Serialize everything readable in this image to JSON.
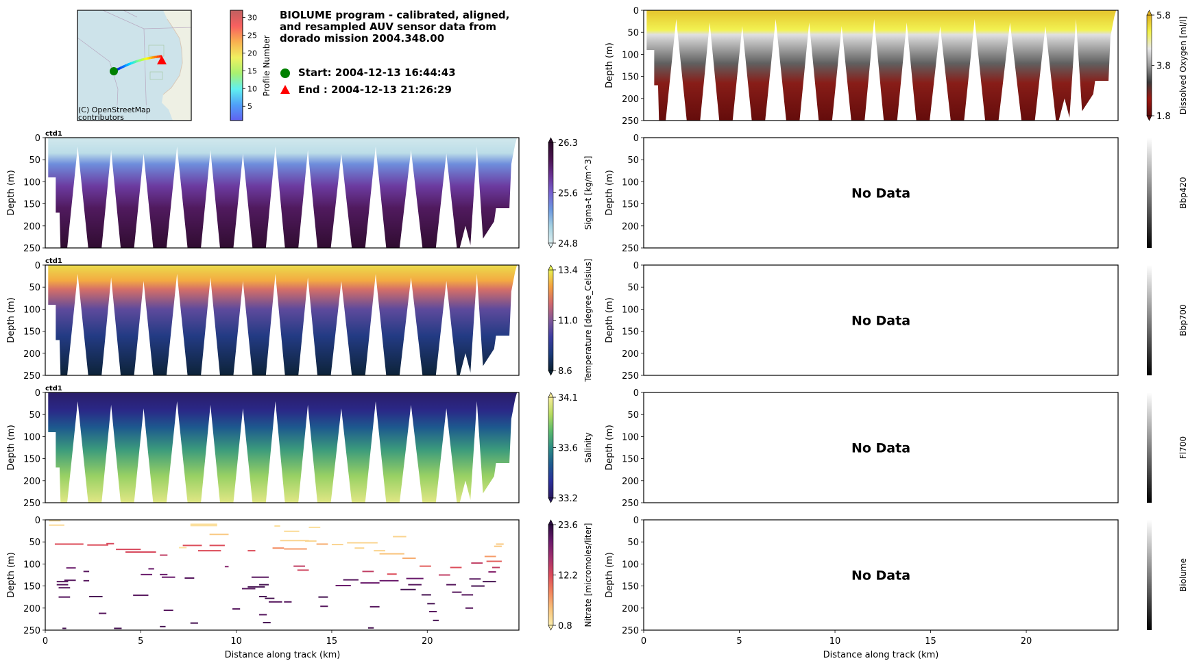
{
  "header": {
    "title_lines": [
      "BIOLUME program - calibrated, aligned,",
      "and resampled AUV sensor data from",
      "dorado mission 2004.348.00"
    ],
    "start_label": "Start: 2004-12-13 16:44:43",
    "end_label": "End  : 2004-12-13 21:26:29",
    "start_marker_color": "#008000",
    "end_marker_color": "#ff0000"
  },
  "map": {
    "credit_lines": [
      "(C) OpenStreetMap",
      "contributors"
    ],
    "water_color": "#cde3ea",
    "track_color_scale": "jet",
    "colorbar": {
      "label": "Profile Number",
      "ticks": [
        5,
        10,
        15,
        20,
        25,
        30
      ],
      "range": [
        1,
        32
      ]
    }
  },
  "chart_data": {
    "type": "heatmap",
    "title": "BIOLUME program - calibrated, aligned, and resampled AUV sensor data from dorado mission 2004.348.00",
    "xlabel": "Distance along track (km)",
    "ylabel": "Depth (m)",
    "xlim": [
      0,
      24.8
    ],
    "ylim": [
      250,
      0
    ],
    "xticks": [
      0,
      5,
      10,
      15,
      20
    ],
    "yticks": [
      0,
      50,
      100,
      150,
      200,
      250
    ],
    "profile_count": 32,
    "yo_bottom_km": [
      0.8,
      2.6,
      4.3,
      6.0,
      7.8,
      9.5,
      11.2,
      12.9,
      14.6,
      16.4,
      18.2,
      20.1,
      21.9,
      23.3,
      24.0
    ],
    "yo_top_km": [
      0.1,
      1.9,
      3.6,
      5.3,
      7.0,
      8.7,
      10.4,
      12.1,
      13.8,
      15.6,
      17.4,
      19.2,
      21.2,
      22.8,
      23.7,
      24.6
    ],
    "panels": [
      {
        "id": "dissolved-oxygen",
        "column": "right",
        "row": 0,
        "tag": "",
        "has_data": true,
        "colorbar_label": "Dissolved Oxygen [ml/l]",
        "vmin": 1.8,
        "vmax": 5.8,
        "cbar_ticks": [
          "5.8",
          "3.8",
          "1.8"
        ],
        "colormap": [
          "#5a0a0a",
          "#9b1610",
          "#3a3a3a",
          "#9a9a9a",
          "#e8e8e8",
          "#f2f24a",
          "#e0b020"
        ],
        "layers": [
          {
            "depth": 0,
            "value": 5.6
          },
          {
            "depth": 45,
            "value": 5.1
          },
          {
            "depth": 55,
            "value": 4.4
          },
          {
            "depth": 120,
            "value": 3.4
          },
          {
            "depth": 165,
            "value": 2.6
          },
          {
            "depth": 250,
            "value": 1.9
          }
        ]
      },
      {
        "id": "sigma-t",
        "column": "left",
        "row": 1,
        "tag": "ctd1",
        "has_data": true,
        "colorbar_label": "Sigma-t [kg/m^3]",
        "vmin": 24.8,
        "vmax": 26.3,
        "cbar_ticks": [
          "26.3",
          "25.6",
          "24.8"
        ],
        "colormap": [
          "#dceef0",
          "#a6d2e2",
          "#6c98df",
          "#7661cf",
          "#6a3294",
          "#4a1450",
          "#2a0a28"
        ],
        "layers": [
          {
            "depth": 0,
            "value": 24.85
          },
          {
            "depth": 35,
            "value": 24.95
          },
          {
            "depth": 60,
            "value": 25.35
          },
          {
            "depth": 110,
            "value": 25.75
          },
          {
            "depth": 160,
            "value": 26.0
          },
          {
            "depth": 250,
            "value": 26.25
          }
        ]
      },
      {
        "id": "temperature",
        "column": "left",
        "row": 2,
        "tag": "ctd1",
        "has_data": true,
        "colorbar_label": "Temperature [degree_Celsius]",
        "vmin": 8.6,
        "vmax": 13.4,
        "cbar_ticks": [
          "13.4",
          "11.0",
          "8.6"
        ],
        "colormap": [
          "#0b2030",
          "#1a3a7a",
          "#3c3ca0",
          "#805898",
          "#d0686e",
          "#f4a040",
          "#e8f050"
        ],
        "layers": [
          {
            "depth": 0,
            "value": 13.2
          },
          {
            "depth": 35,
            "value": 12.7
          },
          {
            "depth": 55,
            "value": 11.9
          },
          {
            "depth": 100,
            "value": 10.6
          },
          {
            "depth": 160,
            "value": 9.6
          },
          {
            "depth": 250,
            "value": 8.7
          }
        ]
      },
      {
        "id": "salinity",
        "column": "left",
        "row": 3,
        "tag": "ctd1",
        "has_data": true,
        "colorbar_label": "Salinity",
        "vmin": 33.2,
        "vmax": 34.1,
        "cbar_ticks": [
          "34.1",
          "33.6",
          "33.2"
        ],
        "colormap": [
          "#2a1a60",
          "#2a2f9a",
          "#1d5a8e",
          "#2c8c84",
          "#5cba6c",
          "#b8dc60",
          "#f6ec98"
        ],
        "layers": [
          {
            "depth": 0,
            "value": 33.22
          },
          {
            "depth": 40,
            "value": 33.3
          },
          {
            "depth": 80,
            "value": 33.5
          },
          {
            "depth": 130,
            "value": 33.7
          },
          {
            "depth": 190,
            "value": 33.9
          },
          {
            "depth": 250,
            "value": 34.05
          }
        ]
      },
      {
        "id": "nitrate",
        "column": "left",
        "row": 4,
        "tag": "",
        "has_data": true,
        "sparse": true,
        "colorbar_label": "Nitrate [micromoles/liter]",
        "vmin": 0.8,
        "vmax": 23.6,
        "cbar_ticks": [
          "23.6",
          "12.2",
          "0.8"
        ],
        "colormap": [
          "#fcedab",
          "#f9c27a",
          "#f2855d",
          "#db4a5a",
          "#a3306e",
          "#6b1a6c",
          "#2a0c3e"
        ],
        "samples": [
          {
            "x0": 0.2,
            "x1": 0.8,
            "depth": 2,
            "value": 2
          },
          {
            "x0": 0.2,
            "x1": 1.0,
            "depth": 12,
            "value": 2.5
          },
          {
            "x0": 0.5,
            "x1": 2.0,
            "depth": 55,
            "value": 12
          },
          {
            "x0": 2.2,
            "x1": 3.3,
            "depth": 57,
            "value": 12
          },
          {
            "x0": 3.2,
            "x1": 3.6,
            "depth": 54,
            "value": 12.5
          },
          {
            "x0": 3.7,
            "x1": 5.0,
            "depth": 67,
            "value": 12.5
          },
          {
            "x0": 4.2,
            "x1": 5.8,
            "depth": 73,
            "value": 12.5
          },
          {
            "x0": 6.0,
            "x1": 6.4,
            "depth": 80,
            "value": 14
          },
          {
            "x0": 1.1,
            "x1": 1.6,
            "depth": 109,
            "value": 20
          },
          {
            "x0": 2.0,
            "x1": 2.3,
            "depth": 117,
            "value": 21
          },
          {
            "x0": 0.6,
            "x1": 1.2,
            "depth": 140,
            "value": 21
          },
          {
            "x0": 0.6,
            "x1": 1.2,
            "depth": 147,
            "value": 21
          },
          {
            "x0": 1.0,
            "x1": 1.6,
            "depth": 137,
            "value": 21
          },
          {
            "x0": 0.7,
            "x1": 1.3,
            "depth": 154,
            "value": 21
          },
          {
            "x0": 2.0,
            "x1": 2.3,
            "depth": 138,
            "value": 21
          },
          {
            "x0": 0.7,
            "x1": 1.3,
            "depth": 175,
            "value": 21
          },
          {
            "x0": 2.3,
            "x1": 3.0,
            "depth": 174,
            "value": 22
          },
          {
            "x0": 4.6,
            "x1": 5.4,
            "depth": 171,
            "value": 21
          },
          {
            "x0": 5.0,
            "x1": 5.6,
            "depth": 124,
            "value": 20
          },
          {
            "x0": 6.0,
            "x1": 6.4,
            "depth": 124,
            "value": 20
          },
          {
            "x0": 6.1,
            "x1": 6.8,
            "depth": 130,
            "value": 20
          },
          {
            "x0": 5.4,
            "x1": 5.7,
            "depth": 111,
            "value": 20
          },
          {
            "x0": 7.0,
            "x1": 7.4,
            "depth": 63,
            "value": 1.8
          },
          {
            "x0": 7.6,
            "x1": 9.0,
            "depth": 13,
            "value": 2
          },
          {
            "x0": 7.6,
            "x1": 9.0,
            "depth": 10,
            "value": 2
          },
          {
            "x0": 8.6,
            "x1": 9.6,
            "depth": 33,
            "value": 4
          },
          {
            "x0": 7.2,
            "x1": 8.2,
            "depth": 58,
            "value": 12
          },
          {
            "x0": 8.6,
            "x1": 9.4,
            "depth": 58,
            "value": 12
          },
          {
            "x0": 8.0,
            "x1": 9.2,
            "depth": 70,
            "value": 12
          },
          {
            "x0": 10.6,
            "x1": 11.0,
            "depth": 70,
            "value": 12
          },
          {
            "x0": 9.4,
            "x1": 9.6,
            "depth": 106,
            "value": 18
          },
          {
            "x0": 7.3,
            "x1": 7.8,
            "depth": 132,
            "value": 21
          },
          {
            "x0": 10.8,
            "x1": 11.7,
            "depth": 130,
            "value": 21
          },
          {
            "x0": 10.3,
            "x1": 11.0,
            "depth": 156,
            "value": 21
          },
          {
            "x0": 11.2,
            "x1": 11.7,
            "depth": 147,
            "value": 22
          },
          {
            "x0": 10.6,
            "x1": 11.5,
            "depth": 152,
            "value": 22
          },
          {
            "x0": 11.2,
            "x1": 11.6,
            "depth": 174,
            "value": 22
          },
          {
            "x0": 11.5,
            "x1": 12.0,
            "depth": 178,
            "value": 22
          },
          {
            "x0": 11.7,
            "x1": 12.4,
            "depth": 186,
            "value": 21
          },
          {
            "x0": 12.5,
            "x1": 12.9,
            "depth": 186,
            "value": 21
          },
          {
            "x0": 12.0,
            "x1": 12.3,
            "depth": 14,
            "value": 2
          },
          {
            "x0": 13.8,
            "x1": 14.4,
            "depth": 17,
            "value": 2
          },
          {
            "x0": 12.5,
            "x1": 13.3,
            "depth": 26,
            "value": 2.5
          },
          {
            "x0": 12.3,
            "x1": 13.8,
            "depth": 47,
            "value": 3
          },
          {
            "x0": 13.6,
            "x1": 14.2,
            "depth": 48,
            "value": 3
          },
          {
            "x0": 12.5,
            "x1": 13.7,
            "depth": 66,
            "value": 7
          },
          {
            "x0": 14.2,
            "x1": 14.8,
            "depth": 55,
            "value": 6
          },
          {
            "x0": 11.9,
            "x1": 12.5,
            "depth": 64,
            "value": 8
          },
          {
            "x0": 13.0,
            "x1": 13.6,
            "depth": 105,
            "value": 14
          },
          {
            "x0": 13.2,
            "x1": 13.8,
            "depth": 114,
            "value": 13
          },
          {
            "x0": 15.0,
            "x1": 15.6,
            "depth": 56,
            "value": 3
          },
          {
            "x0": 16.2,
            "x1": 16.7,
            "depth": 64,
            "value": 3
          },
          {
            "x0": 15.8,
            "x1": 17.4,
            "depth": 52,
            "value": 3
          },
          {
            "x0": 17.2,
            "x1": 17.8,
            "depth": 70,
            "value": 3
          },
          {
            "x0": 18.2,
            "x1": 18.9,
            "depth": 38,
            "value": 3
          },
          {
            "x0": 17.5,
            "x1": 18.8,
            "depth": 77,
            "value": 4.5
          },
          {
            "x0": 18.7,
            "x1": 19.4,
            "depth": 87,
            "value": 6
          },
          {
            "x0": 19.6,
            "x1": 20.2,
            "depth": 105,
            "value": 11
          },
          {
            "x0": 17.9,
            "x1": 18.4,
            "depth": 123,
            "value": 12
          },
          {
            "x0": 18.9,
            "x1": 19.8,
            "depth": 133,
            "value": 20
          },
          {
            "x0": 17.5,
            "x1": 18.5,
            "depth": 138,
            "value": 20
          },
          {
            "x0": 16.6,
            "x1": 17.2,
            "depth": 117,
            "value": 14
          },
          {
            "x0": 15.2,
            "x1": 16.0,
            "depth": 149,
            "value": 20
          },
          {
            "x0": 15.6,
            "x1": 16.4,
            "depth": 136,
            "value": 21
          },
          {
            "x0": 16.5,
            "x1": 17.5,
            "depth": 143,
            "value": 20
          },
          {
            "x0": 19.0,
            "x1": 19.7,
            "depth": 147,
            "value": 21
          },
          {
            "x0": 18.6,
            "x1": 19.4,
            "depth": 158,
            "value": 22
          },
          {
            "x0": 19.7,
            "x1": 20.2,
            "depth": 170,
            "value": 22
          },
          {
            "x0": 14.3,
            "x1": 14.8,
            "depth": 175,
            "value": 22
          },
          {
            "x0": 20.0,
            "x1": 20.4,
            "depth": 190,
            "value": 22
          },
          {
            "x0": 22.3,
            "x1": 22.9,
            "depth": 98,
            "value": 14
          },
          {
            "x0": 23.0,
            "x1": 23.6,
            "depth": 83,
            "value": 7
          },
          {
            "x0": 23.5,
            "x1": 23.9,
            "depth": 60,
            "value": 4
          },
          {
            "x0": 23.6,
            "x1": 24.0,
            "depth": 55,
            "value": 4
          },
          {
            "x0": 23.4,
            "x1": 23.8,
            "depth": 108,
            "value": 14
          },
          {
            "x0": 23.2,
            "x1": 23.6,
            "depth": 118,
            "value": 18
          },
          {
            "x0": 23.1,
            "x1": 23.9,
            "depth": 94,
            "value": 11
          },
          {
            "x0": 22.3,
            "x1": 23.0,
            "depth": 150,
            "value": 22
          },
          {
            "x0": 22.9,
            "x1": 23.6,
            "depth": 140,
            "value": 22
          },
          {
            "x0": 21.8,
            "x1": 22.4,
            "depth": 170,
            "value": 21
          },
          {
            "x0": 20.6,
            "x1": 21.2,
            "depth": 125,
            "value": 14
          },
          {
            "x0": 21.2,
            "x1": 21.8,
            "depth": 108,
            "value": 12
          },
          {
            "x0": 21.0,
            "x1": 21.5,
            "depth": 147,
            "value": 21
          },
          {
            "x0": 21.3,
            "x1": 21.8,
            "depth": 164,
            "value": 21
          },
          {
            "x0": 22.2,
            "x1": 22.8,
            "depth": 134,
            "value": 21
          },
          {
            "x0": 0.9,
            "x1": 1.1,
            "depth": 246,
            "value": 22
          },
          {
            "x0": 3.6,
            "x1": 4.0,
            "depth": 246,
            "value": 22
          },
          {
            "x0": 7.6,
            "x1": 8.0,
            "depth": 234,
            "value": 22
          },
          {
            "x0": 11.4,
            "x1": 11.8,
            "depth": 233,
            "value": 22
          },
          {
            "x0": 16.9,
            "x1": 17.2,
            "depth": 245,
            "value": 22
          },
          {
            "x0": 6.0,
            "x1": 6.3,
            "depth": 242,
            "value": 22
          },
          {
            "x0": 20.3,
            "x1": 20.6,
            "depth": 228,
            "value": 22
          },
          {
            "x0": 2.8,
            "x1": 3.2,
            "depth": 212,
            "value": 21
          },
          {
            "x0": 6.2,
            "x1": 6.7,
            "depth": 205,
            "value": 21
          },
          {
            "x0": 9.8,
            "x1": 10.2,
            "depth": 202,
            "value": 21
          },
          {
            "x0": 11.2,
            "x1": 11.6,
            "depth": 215,
            "value": 21
          },
          {
            "x0": 14.4,
            "x1": 14.8,
            "depth": 196,
            "value": 21
          },
          {
            "x0": 17.0,
            "x1": 17.5,
            "depth": 197,
            "value": 21
          },
          {
            "x0": 20.1,
            "x1": 20.5,
            "depth": 208,
            "value": 21
          },
          {
            "x0": 22.0,
            "x1": 22.4,
            "depth": 200,
            "value": 21
          }
        ]
      },
      {
        "id": "bbp420",
        "column": "right",
        "row": 1,
        "tag": "",
        "has_data": false,
        "no_data_text": "No Data",
        "colorbar_label": "Bbp420",
        "cbar_ticks": [],
        "colormap": [
          "#000000",
          "#ffffff"
        ]
      },
      {
        "id": "bbp700",
        "column": "right",
        "row": 2,
        "tag": "",
        "has_data": false,
        "no_data_text": "No Data",
        "colorbar_label": "Bbp700",
        "cbar_ticks": [],
        "colormap": [
          "#000000",
          "#ffffff"
        ]
      },
      {
        "id": "fl700",
        "column": "right",
        "row": 3,
        "tag": "",
        "has_data": false,
        "no_data_text": "No Data",
        "colorbar_label": "Fl700",
        "cbar_ticks": [],
        "colormap": [
          "#000000",
          "#ffffff"
        ]
      },
      {
        "id": "biolume",
        "column": "right",
        "row": 4,
        "tag": "",
        "has_data": false,
        "no_data_text": "No Data",
        "colorbar_label": "Biolume",
        "cbar_ticks": [],
        "colormap": [
          "#000000",
          "#ffffff"
        ]
      }
    ]
  }
}
